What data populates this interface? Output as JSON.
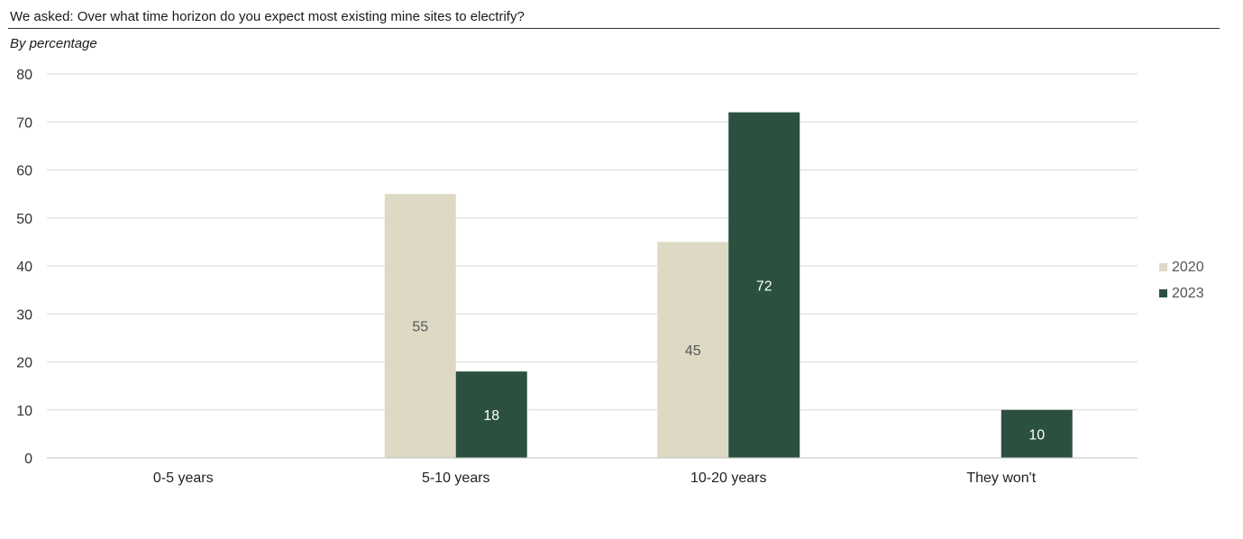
{
  "title": "We asked: Over what time horizon do you expect most existing mine sites to electrify?",
  "subtitle": "By percentage",
  "colors": {
    "series_2020": "#ded9c4",
    "series_2023": "#2b5040",
    "grid": "#d9d9d9",
    "axis": "#bfbfbf"
  },
  "chart_data": {
    "type": "bar",
    "categories": [
      "0-5 years",
      "5-10 years",
      "10-20 years",
      "They won't"
    ],
    "series": [
      {
        "name": "2020",
        "values": [
          null,
          55,
          45,
          null
        ]
      },
      {
        "name": "2023",
        "values": [
          null,
          18,
          72,
          10
        ]
      }
    ],
    "ylim": [
      0,
      80
    ],
    "yticks": [
      0,
      10,
      20,
      30,
      40,
      50,
      60,
      70,
      80
    ],
    "grid": true,
    "legend": "right",
    "data_labels": true
  }
}
